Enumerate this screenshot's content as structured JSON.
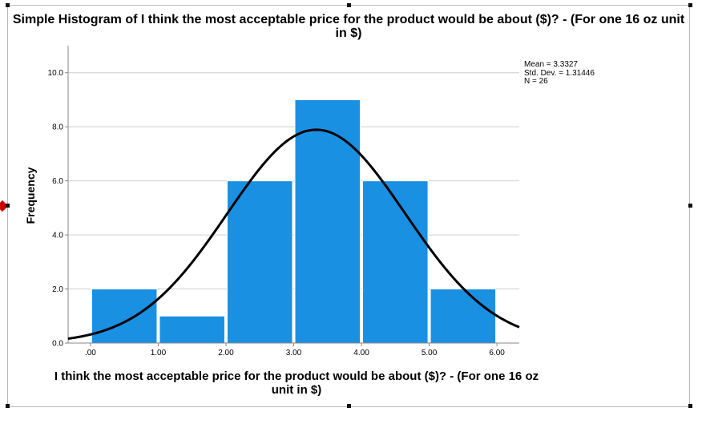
{
  "chart_data": {
    "type": "bar",
    "title": "Simple Histogram of I think the most acceptable price for the product would be about ($)? - (For one 16 oz unit in $)",
    "xlabel": "I think the most acceptable price for the product would be about ($)? - (For one 16 oz unit in $)",
    "ylabel": "Frequency",
    "bins": [
      {
        "start": 0,
        "end": 1,
        "count": 2
      },
      {
        "start": 1,
        "end": 2,
        "count": 1
      },
      {
        "start": 2,
        "end": 3,
        "count": 6
      },
      {
        "start": 3,
        "end": 4,
        "count": 9
      },
      {
        "start": 4,
        "end": 5,
        "count": 6
      },
      {
        "start": 5,
        "end": 6,
        "count": 2
      }
    ],
    "xlim": [
      -0.33,
      6.33
    ],
    "ylim": [
      0,
      11
    ],
    "x_ticks": [
      {
        "value": 0,
        "label": ".00"
      },
      {
        "value": 1,
        "label": "1.00"
      },
      {
        "value": 2,
        "label": "2.00"
      },
      {
        "value": 3,
        "label": "3.00"
      },
      {
        "value": 4,
        "label": "4.00"
      },
      {
        "value": 5,
        "label": "5.00"
      },
      {
        "value": 6,
        "label": "6.00"
      }
    ],
    "y_ticks": [
      {
        "value": 0,
        "label": "0.0"
      },
      {
        "value": 2,
        "label": "2.0"
      },
      {
        "value": 4,
        "label": "4.0"
      },
      {
        "value": 6,
        "label": "6.0"
      },
      {
        "value": 8,
        "label": "8.0"
      },
      {
        "value": 10,
        "label": "10.0"
      }
    ],
    "grid": true,
    "normal_curve": {
      "mean": 3.3327,
      "std_dev": 1.31446,
      "n": 26
    },
    "stats_text": [
      "Mean = 3.3327",
      "Std. Dev. = 1.31446",
      "N = 26"
    ],
    "legend_placement": "top-right",
    "colors": {
      "bar": "#1a90e3",
      "bar_edge": "#ffffff",
      "curve": "#000000",
      "grid": "#cfcfcf",
      "axis": "#888888"
    }
  }
}
